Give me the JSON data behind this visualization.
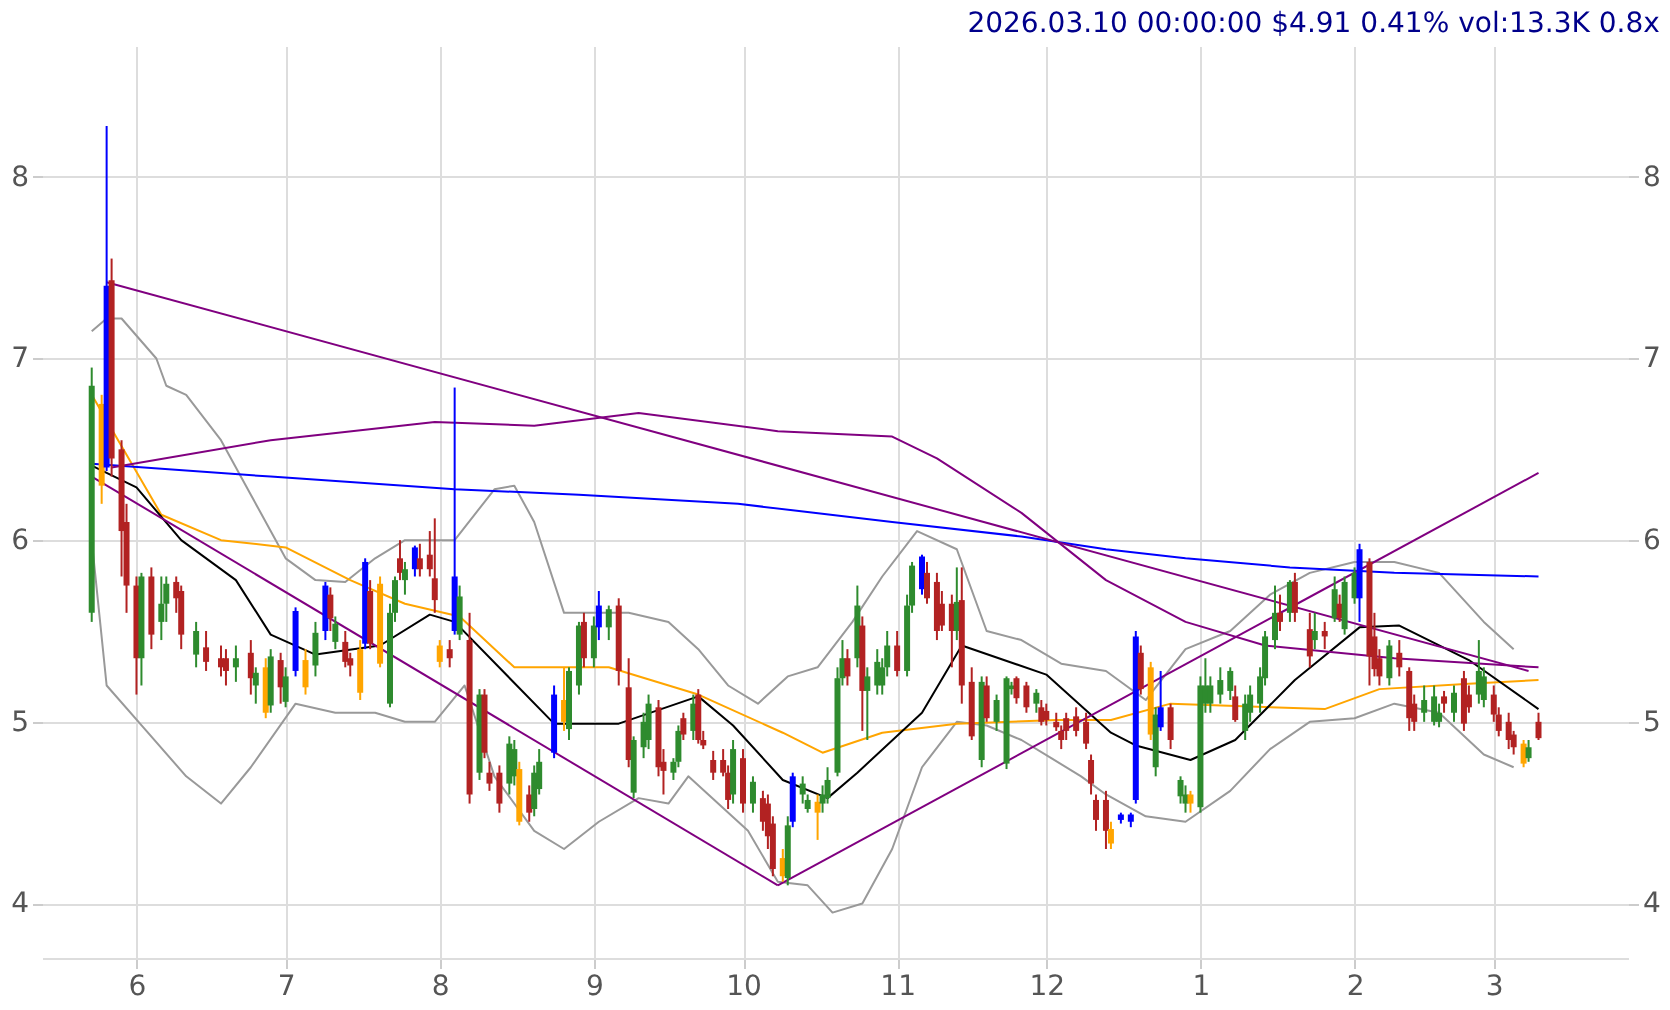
{
  "chart_data": {
    "type": "candlestick",
    "title": "2026.03.10 00:00:00 $4.91 0.41% vol:13.3K 0.8x",
    "x": [
      "2025-05-23",
      "2025-05-25",
      "2025-05-26",
      "2025-05-27",
      "2025-05-29",
      "2025-05-30",
      "2025-06-01",
      "2025-06-02",
      "2025-06-04",
      "2025-06-06",
      "2025-06-07",
      "2025-06-09",
      "2025-06-10",
      "2025-06-13",
      "2025-06-15",
      "2025-06-18",
      "2025-06-19",
      "2025-06-21",
      "2025-06-24",
      "2025-06-25",
      "2025-06-27",
      "2025-06-28",
      "2025-06-30",
      "2025-07-01",
      "2025-07-03",
      "2025-07-05",
      "2025-07-07",
      "2025-07-09",
      "2025-07-10",
      "2025-07-11",
      "2025-07-13",
      "2025-07-14",
      "2025-07-16",
      "2025-07-17",
      "2025-07-18",
      "2025-07-20",
      "2025-07-22",
      "2025-07-23",
      "2025-07-24",
      "2025-07-25",
      "2025-07-27",
      "2025-07-28",
      "2025-07-30",
      "2025-07-31",
      "2025-08-01",
      "2025-08-03",
      "2025-08-04",
      "2025-08-05",
      "2025-08-07",
      "2025-08-09",
      "2025-08-10",
      "2025-08-11",
      "2025-08-13",
      "2025-08-15",
      "2025-08-16",
      "2025-08-17",
      "2025-08-19",
      "2025-08-20",
      "2025-08-21",
      "2025-08-24",
      "2025-08-26",
      "2025-08-27",
      "2025-08-29",
      "2025-08-30",
      "2025-09-01",
      "2025-09-02",
      "2025-09-04",
      "2025-09-06",
      "2025-09-08",
      "2025-09-09",
      "2025-09-11",
      "2025-09-12",
      "2025-09-14",
      "2025-09-15",
      "2025-09-17",
      "2025-09-18",
      "2025-09-19",
      "2025-09-21",
      "2025-09-22",
      "2025-09-23",
      "2025-09-25",
      "2025-09-27",
      "2025-09-28",
      "2025-09-29",
      "2025-10-01",
      "2025-10-03",
      "2025-10-05",
      "2025-10-06",
      "2025-10-07",
      "2025-10-09",
      "2025-10-10",
      "2025-10-11",
      "2025-10-13",
      "2025-10-14",
      "2025-10-16",
      "2025-10-17",
      "2025-10-18",
      "2025-10-20",
      "2025-10-21",
      "2025-10-22",
      "2025-10-24",
      "2025-10-25",
      "2025-10-26",
      "2025-10-28",
      "2025-10-29",
      "2025-10-30",
      "2025-11-01",
      "2025-11-03",
      "2025-11-04",
      "2025-11-06",
      "2025-11-07",
      "2025-11-09",
      "2025-11-10",
      "2025-11-12",
      "2025-11-13",
      "2025-11-14",
      "2025-11-16",
      "2025-11-18",
      "2025-11-19",
      "2025-11-21",
      "2025-11-23",
      "2025-11-24",
      "2025-11-25",
      "2025-11-27",
      "2025-11-29",
      "2025-11-30",
      "2025-12-01",
      "2025-12-03",
      "2025-12-04",
      "2025-12-05",
      "2025-12-07",
      "2025-12-09",
      "2025-12-10",
      "2025-12-11",
      "2025-12-13",
      "2025-12-14",
      "2025-12-16",
      "2025-12-18",
      "2025-12-19",
      "2025-12-20",
      "2025-12-22",
      "2025-12-23",
      "2025-12-24",
      "2025-12-26",
      "2025-12-28",
      "2025-12-29",
      "2025-12-30",
      "2026-01-01",
      "2026-01-02",
      "2026-01-03",
      "2026-01-05",
      "2026-01-07",
      "2026-01-08",
      "2026-01-10",
      "2026-01-11",
      "2026-01-13",
      "2026-01-14",
      "2026-01-16",
      "2026-01-17",
      "2026-01-19",
      "2026-01-20",
      "2026-01-23",
      "2026-01-24",
      "2026-01-26",
      "2026-01-28",
      "2026-01-29",
      "2026-01-30",
      "2026-02-01",
      "2026-02-02",
      "2026-02-04",
      "2026-02-05",
      "2026-02-06",
      "2026-02-08",
      "2026-02-10",
      "2026-02-12",
      "2026-02-13",
      "2026-02-15",
      "2026-02-17",
      "2026-02-18",
      "2026-02-19",
      "2026-02-21",
      "2026-02-23",
      "2026-02-24",
      "2026-02-26",
      "2026-02-27",
      "2026-03-01",
      "2026-03-02",
      "2026-03-04",
      "2026-03-05",
      "2026-03-07",
      "2026-03-08",
      "2026-03-10"
    ],
    "ohlc": [
      [
        5.6,
        6.95,
        5.55,
        6.85
      ],
      [
        6.75,
        6.8,
        6.2,
        6.3
      ],
      [
        6.4,
        8.28,
        6.38,
        7.4
      ],
      [
        7.43,
        7.55,
        6.35,
        6.45
      ],
      [
        6.5,
        6.55,
        5.8,
        6.05
      ],
      [
        6.1,
        6.2,
        5.6,
        5.75
      ],
      [
        5.75,
        5.8,
        5.15,
        5.35
      ],
      [
        5.35,
        5.82,
        5.2,
        5.8
      ],
      [
        5.8,
        5.85,
        5.4,
        5.48
      ],
      [
        5.55,
        5.8,
        5.45,
        5.65
      ],
      [
        5.65,
        5.8,
        5.55,
        5.76
      ],
      [
        5.77,
        5.8,
        5.6,
        5.68
      ],
      [
        5.72,
        5.75,
        5.4,
        5.48
      ],
      [
        5.37,
        5.55,
        5.3,
        5.5
      ],
      [
        5.41,
        5.5,
        5.28,
        5.33
      ],
      [
        5.35,
        5.42,
        5.25,
        5.3
      ],
      [
        5.35,
        5.4,
        5.2,
        5.28
      ],
      [
        5.3,
        5.42,
        5.22,
        5.35
      ],
      [
        5.38,
        5.45,
        5.15,
        5.24
      ],
      [
        5.2,
        5.3,
        5.1,
        5.27
      ],
      [
        5.3,
        5.35,
        5.02,
        5.05
      ],
      [
        5.09,
        5.4,
        5.05,
        5.36
      ],
      [
        5.34,
        5.38,
        5.1,
        5.19
      ],
      [
        5.11,
        5.3,
        5.08,
        5.25
      ],
      [
        5.28,
        5.63,
        5.25,
        5.61
      ],
      [
        5.34,
        5.4,
        5.15,
        5.19
      ],
      [
        5.31,
        5.55,
        5.25,
        5.49
      ],
      [
        5.5,
        5.77,
        5.45,
        5.75
      ],
      [
        5.7,
        5.74,
        5.5,
        5.57
      ],
      [
        5.44,
        5.58,
        5.4,
        5.54
      ],
      [
        5.44,
        5.5,
        5.3,
        5.33
      ],
      [
        5.35,
        5.38,
        5.25,
        5.31
      ],
      [
        5.4,
        5.45,
        5.12,
        5.16
      ],
      [
        5.43,
        5.9,
        5.4,
        5.88
      ],
      [
        5.72,
        5.78,
        5.4,
        5.43
      ],
      [
        5.76,
        5.8,
        5.3,
        5.32
      ],
      [
        5.1,
        5.65,
        5.08,
        5.6
      ],
      [
        5.6,
        5.8,
        5.55,
        5.78
      ],
      [
        5.9,
        6.0,
        5.78,
        5.82
      ],
      [
        5.78,
        5.88,
        5.7,
        5.84
      ],
      [
        5.84,
        5.97,
        5.8,
        5.96
      ],
      [
        5.9,
        5.98,
        5.8,
        5.84
      ],
      [
        5.92,
        6.05,
        5.8,
        5.84
      ],
      [
        5.79,
        6.12,
        5.6,
        5.67
      ],
      [
        5.42,
        5.45,
        5.3,
        5.33
      ],
      [
        5.4,
        5.45,
        5.3,
        5.35
      ],
      [
        5.5,
        6.84,
        5.48,
        5.8
      ],
      [
        5.48,
        5.75,
        5.45,
        5.69
      ],
      [
        5.45,
        5.6,
        4.55,
        4.6
      ],
      [
        4.72,
        5.18,
        4.68,
        5.15
      ],
      [
        5.15,
        5.18,
        4.8,
        4.83
      ],
      [
        4.72,
        4.78,
        4.62,
        4.66
      ],
      [
        4.72,
        4.76,
        4.5,
        4.55
      ],
      [
        4.66,
        4.92,
        4.6,
        4.88
      ],
      [
        4.7,
        4.9,
        4.65,
        4.85
      ],
      [
        4.74,
        4.78,
        4.43,
        4.45
      ],
      [
        4.6,
        4.65,
        4.45,
        4.5
      ],
      [
        4.52,
        4.76,
        4.48,
        4.72
      ],
      [
        4.63,
        4.85,
        4.6,
        4.78
      ],
      [
        4.83,
        5.2,
        4.8,
        5.15
      ],
      [
        5.0,
        5.3,
        4.95,
        5.12
      ],
      [
        4.96,
        5.3,
        4.9,
        5.28
      ],
      [
        5.2,
        5.55,
        5.15,
        5.53
      ],
      [
        5.55,
        5.6,
        5.3,
        5.35
      ],
      [
        5.35,
        5.58,
        5.3,
        5.53
      ],
      [
        5.52,
        5.72,
        5.45,
        5.64
      ],
      [
        5.52,
        5.64,
        5.45,
        5.62
      ],
      [
        5.64,
        5.68,
        5.2,
        5.28
      ],
      [
        5.19,
        5.35,
        4.75,
        4.79
      ],
      [
        4.61,
        4.92,
        4.58,
        4.9
      ],
      [
        4.86,
        5.05,
        4.8,
        5.0
      ],
      [
        4.9,
        5.15,
        4.85,
        5.1
      ],
      [
        5.08,
        5.12,
        4.7,
        4.75
      ],
      [
        4.78,
        4.85,
        4.6,
        4.73
      ],
      [
        4.72,
        4.8,
        4.68,
        4.78
      ],
      [
        4.78,
        4.98,
        4.75,
        4.95
      ],
      [
        5.02,
        5.05,
        4.9,
        4.93
      ],
      [
        4.95,
        5.15,
        4.9,
        5.1
      ],
      [
        5.15,
        5.18,
        4.88,
        4.9
      ],
      [
        4.9,
        4.95,
        4.85,
        4.87
      ],
      [
        4.79,
        4.84,
        4.68,
        4.72
      ],
      [
        4.79,
        4.85,
        4.7,
        4.72
      ],
      [
        4.72,
        4.76,
        4.52,
        4.57
      ],
      [
        4.6,
        4.9,
        4.55,
        4.85
      ],
      [
        4.8,
        4.85,
        4.5,
        4.55
      ],
      [
        4.55,
        4.7,
        4.5,
        4.67
      ],
      [
        4.58,
        4.62,
        4.4,
        4.45
      ],
      [
        4.55,
        4.6,
        4.3,
        4.37
      ],
      [
        4.44,
        4.48,
        4.15,
        4.19
      ],
      [
        4.25,
        4.3,
        4.12,
        4.15
      ],
      [
        4.14,
        4.48,
        4.1,
        4.43
      ],
      [
        4.45,
        4.72,
        4.42,
        4.7
      ],
      [
        4.6,
        4.7,
        4.55,
        4.66
      ],
      [
        4.52,
        4.6,
        4.5,
        4.57
      ],
      [
        4.56,
        4.6,
        4.35,
        4.5
      ],
      [
        4.55,
        4.65,
        4.5,
        4.6
      ],
      [
        4.58,
        4.75,
        4.55,
        4.68
      ],
      [
        4.72,
        5.3,
        4.7,
        5.24
      ],
      [
        5.24,
        5.45,
        5.2,
        5.35
      ],
      [
        5.35,
        5.4,
        5.2,
        5.25
      ],
      [
        5.35,
        5.75,
        5.3,
        5.64
      ],
      [
        5.53,
        5.58,
        4.95,
        5.17
      ],
      [
        5.17,
        5.3,
        4.9,
        5.25
      ],
      [
        5.2,
        5.4,
        5.15,
        5.33
      ],
      [
        5.2,
        5.35,
        5.15,
        5.3
      ],
      [
        5.3,
        5.5,
        5.25,
        5.42
      ],
      [
        5.42,
        5.5,
        5.25,
        5.28
      ],
      [
        5.28,
        5.7,
        5.25,
        5.64
      ],
      [
        5.64,
        5.88,
        5.6,
        5.86
      ],
      [
        5.73,
        5.92,
        5.7,
        5.91
      ],
      [
        5.82,
        5.88,
        5.65,
        5.68
      ],
      [
        5.77,
        5.82,
        5.45,
        5.5
      ],
      [
        5.65,
        5.72,
        5.5,
        5.53
      ],
      [
        5.65,
        5.7,
        5.3,
        5.5
      ],
      [
        5.5,
        5.85,
        5.45,
        5.66
      ],
      [
        5.67,
        5.85,
        5.1,
        5.2
      ],
      [
        5.22,
        5.3,
        4.9,
        4.92
      ],
      [
        4.79,
        5.25,
        4.75,
        5.22
      ],
      [
        5.2,
        5.25,
        5.0,
        5.02
      ],
      [
        5.0,
        5.15,
        4.95,
        5.12
      ],
      [
        4.77,
        5.25,
        4.74,
        5.24
      ],
      [
        5.18,
        5.22,
        5.15,
        5.2
      ],
      [
        5.24,
        5.25,
        5.1,
        5.13
      ],
      [
        5.2,
        5.22,
        5.05,
        5.08
      ],
      [
        5.1,
        5.18,
        5.05,
        5.16
      ],
      [
        5.08,
        5.12,
        4.98,
        5.0
      ],
      [
        5.06,
        5.1,
        4.98,
        5.01
      ],
      [
        5.0,
        5.05,
        4.95,
        4.97
      ],
      [
        4.95,
        4.98,
        4.85,
        4.9
      ],
      [
        5.02,
        5.05,
        4.9,
        4.95
      ],
      [
        5.03,
        5.08,
        4.92,
        4.95
      ],
      [
        5.0,
        5.05,
        4.85,
        4.88
      ],
      [
        4.79,
        4.82,
        4.6,
        4.66
      ],
      [
        4.57,
        4.6,
        4.4,
        4.46
      ],
      [
        4.57,
        4.62,
        4.3,
        4.4
      ],
      [
        4.41,
        4.45,
        4.3,
        4.33
      ],
      [
        4.46,
        4.5,
        4.44,
        4.49
      ],
      [
        4.45,
        4.5,
        4.42,
        4.49
      ],
      [
        4.57,
        5.5,
        4.55,
        5.47
      ],
      [
        5.38,
        5.42,
        5.15,
        5.18
      ],
      [
        5.3,
        5.33,
        4.9,
        4.93
      ],
      [
        4.75,
        5.08,
        4.7,
        5.04
      ],
      [
        4.97,
        5.28,
        4.95,
        5.08
      ],
      [
        5.08,
        5.1,
        4.85,
        4.9
      ],
      [
        4.59,
        4.7,
        4.55,
        4.68
      ],
      [
        4.55,
        4.65,
        4.5,
        4.6
      ],
      [
        4.6,
        4.62,
        4.5,
        4.55
      ],
      [
        4.53,
        5.25,
        4.5,
        5.2
      ],
      [
        5.1,
        5.35,
        5.05,
        5.2
      ],
      [
        5.1,
        5.25,
        5.05,
        5.2
      ],
      [
        5.15,
        5.3,
        5.1,
        5.23
      ],
      [
        5.17,
        5.3,
        5.12,
        5.28
      ],
      [
        5.14,
        5.2,
        5.0,
        5.01
      ],
      [
        4.95,
        5.15,
        4.9,
        5.1
      ],
      [
        5.05,
        5.2,
        5.0,
        5.15
      ],
      [
        5.1,
        5.3,
        5.05,
        5.25
      ],
      [
        5.24,
        5.5,
        5.2,
        5.47
      ],
      [
        5.45,
        5.75,
        5.4,
        5.6
      ],
      [
        5.6,
        5.7,
        5.5,
        5.55
      ],
      [
        5.6,
        5.78,
        5.55,
        5.77
      ],
      [
        5.77,
        5.82,
        5.55,
        5.6
      ],
      [
        5.51,
        5.6,
        5.3,
        5.36
      ],
      [
        5.45,
        5.6,
        5.4,
        5.5
      ],
      [
        5.5,
        5.55,
        5.4,
        5.47
      ],
      [
        5.57,
        5.8,
        5.55,
        5.73
      ],
      [
        5.65,
        5.7,
        5.55,
        5.57
      ],
      [
        5.51,
        5.8,
        5.48,
        5.77
      ],
      [
        5.68,
        5.85,
        5.65,
        5.82
      ],
      [
        5.68,
        5.98,
        5.55,
        5.95
      ],
      [
        5.88,
        5.9,
        5.2,
        5.36
      ],
      [
        5.47,
        5.6,
        5.25,
        5.29
      ],
      [
        5.35,
        5.4,
        5.2,
        5.25
      ],
      [
        5.24,
        5.45,
        5.2,
        5.42
      ],
      [
        5.38,
        5.45,
        5.25,
        5.3
      ],
      [
        5.28,
        5.3,
        4.95,
        5.02
      ],
      [
        5.1,
        5.15,
        4.95,
        5.0
      ],
      [
        5.05,
        5.2,
        5.0,
        5.12
      ],
      [
        5.0,
        5.2,
        4.98,
        5.14
      ],
      [
        5.0,
        5.1,
        4.97,
        5.05
      ],
      [
        5.14,
        5.17,
        5.05,
        5.1
      ],
      [
        5.05,
        5.2,
        5.0,
        5.16
      ],
      [
        5.24,
        5.28,
        4.95,
        4.99
      ],
      [
        5.15,
        5.2,
        5.05,
        5.08
      ],
      [
        5.15,
        5.45,
        5.1,
        5.28
      ],
      [
        5.12,
        5.3,
        5.08,
        5.25
      ],
      [
        5.15,
        5.2,
        5.0,
        5.04
      ],
      [
        5.04,
        5.08,
        4.92,
        4.95
      ],
      [
        5.0,
        5.05,
        4.85,
        4.9
      ],
      [
        4.93,
        4.95,
        4.82,
        4.86
      ],
      [
        4.88,
        4.9,
        4.75,
        4.77
      ],
      [
        4.8,
        4.9,
        4.78,
        4.86
      ],
      [
        5.0,
        5.05,
        4.9,
        4.91
      ]
    ],
    "colors": [
      "#2e8b2e",
      "#ffa500",
      "#0000ff",
      "#b22222",
      "#b22222",
      "#b22222",
      "#b22222",
      "#2e8b2e",
      "#b22222",
      "#2e8b2e",
      "#2e8b2e",
      "#b22222",
      "#b22222",
      "#2e8b2e",
      "#b22222",
      "#b22222",
      "#b22222",
      "#2e8b2e",
      "#b22222",
      "#2e8b2e",
      "#ffa500",
      "#2e8b2e",
      "#b22222",
      "#2e8b2e",
      "#0000ff",
      "#ffa500",
      "#2e8b2e",
      "#0000ff",
      "#b22222",
      "#2e8b2e",
      "#b22222",
      "#b22222",
      "#ffa500",
      "#0000ff",
      "#b22222",
      "#ffa500",
      "#2e8b2e",
      "#2e8b2e",
      "#b22222",
      "#2e8b2e",
      "#0000ff",
      "#b22222",
      "#b22222",
      "#b22222",
      "#ffa500",
      "#b22222",
      "#0000ff",
      "#2e8b2e",
      "#b22222",
      "#2e8b2e",
      "#b22222",
      "#b22222",
      "#b22222",
      "#2e8b2e",
      "#2e8b2e",
      "#ffa500",
      "#b22222",
      "#2e8b2e",
      "#2e8b2e",
      "#0000ff",
      "#ffa500",
      "#2e8b2e",
      "#2e8b2e",
      "#b22222",
      "#2e8b2e",
      "#0000ff",
      "#2e8b2e",
      "#b22222",
      "#b22222",
      "#2e8b2e",
      "#2e8b2e",
      "#2e8b2e",
      "#b22222",
      "#b22222",
      "#2e8b2e",
      "#2e8b2e",
      "#b22222",
      "#2e8b2e",
      "#b22222",
      "#b22222",
      "#b22222",
      "#b22222",
      "#b22222",
      "#2e8b2e",
      "#b22222",
      "#2e8b2e",
      "#b22222",
      "#b22222",
      "#b22222",
      "#ffa500",
      "#2e8b2e",
      "#0000ff",
      "#2e8b2e",
      "#2e8b2e",
      "#ffa500",
      "#2e8b2e",
      "#2e8b2e",
      "#2e8b2e",
      "#2e8b2e",
      "#b22222",
      "#2e8b2e",
      "#b22222",
      "#2e8b2e",
      "#2e8b2e",
      "#2e8b2e",
      "#2e8b2e",
      "#b22222",
      "#2e8b2e",
      "#2e8b2e",
      "#0000ff",
      "#b22222",
      "#b22222",
      "#b22222",
      "#b22222",
      "#2e8b2e",
      "#b22222",
      "#b22222",
      "#2e8b2e",
      "#b22222",
      "#2e8b2e",
      "#2e8b2e",
      "#2e8b2e",
      "#b22222",
      "#b22222",
      "#2e8b2e",
      "#b22222",
      "#b22222",
      "#b22222",
      "#b22222",
      "#b22222",
      "#b22222",
      "#b22222",
      "#b22222",
      "#b22222",
      "#b22222",
      "#ffa500",
      "#0000ff",
      "#0000ff",
      "#0000ff",
      "#b22222",
      "#ffa500",
      "#2e8b2e",
      "#0000ff",
      "#b22222",
      "#2e8b2e",
      "#2e8b2e",
      "#ffa500",
      "#2e8b2e",
      "#2e8b2e",
      "#2e8b2e",
      "#2e8b2e",
      "#2e8b2e",
      "#b22222",
      "#2e8b2e",
      "#2e8b2e",
      "#2e8b2e",
      "#2e8b2e",
      "#2e8b2e",
      "#b22222",
      "#2e8b2e",
      "#b22222",
      "#b22222",
      "#2e8b2e",
      "#b22222",
      "#2e8b2e",
      "#b22222",
      "#2e8b2e",
      "#2e8b2e",
      "#0000ff",
      "#b22222",
      "#b22222",
      "#b22222",
      "#2e8b2e",
      "#b22222",
      "#b22222",
      "#b22222",
      "#2e8b2e",
      "#2e8b2e",
      "#2e8b2e",
      "#b22222",
      "#2e8b2e",
      "#b22222",
      "#b22222",
      "#2e8b2e",
      "#2e8b2e",
      "#b22222",
      "#b22222",
      "#b22222",
      "#b22222",
      "#ffa500",
      "#2e8b2e",
      "#b22222"
    ],
    "series": [
      {
        "type": "line",
        "color": "#999999",
        "x": [
          "2025-05-23",
          "2025-05-26",
          "2025-05-29",
          "2025-06-05",
          "2025-06-07",
          "2025-06-11",
          "2025-06-18",
          "2025-06-24",
          "2025-07-01",
          "2025-07-07",
          "2025-07-13",
          "2025-07-19",
          "2025-07-25",
          "2025-07-31",
          "2025-08-04",
          "2025-08-12",
          "2025-08-16",
          "2025-08-20",
          "2025-08-26",
          "2025-09-02",
          "2025-09-08",
          "2025-09-16",
          "2025-09-22",
          "2025-09-28",
          "2025-10-04",
          "2025-10-10",
          "2025-10-16",
          "2025-10-23",
          "2025-10-29",
          "2025-11-05",
          "2025-11-13",
          "2025-11-19",
          "2025-11-26",
          "2025-12-04",
          "2025-12-13",
          "2025-12-21",
          "2025-12-29",
          "2026-01-07",
          "2026-01-15",
          "2026-01-23",
          "2026-02-01",
          "2026-02-09",
          "2026-02-18",
          "2026-02-27",
          "2026-03-05"
        ],
        "values": [
          7.15,
          7.22,
          7.22,
          7.0,
          6.85,
          6.8,
          6.55,
          6.25,
          5.9,
          5.78,
          5.77,
          5.9,
          6.0,
          6.0,
          6.0,
          6.28,
          6.3,
          6.1,
          5.6,
          5.6,
          5.6,
          5.55,
          5.4,
          5.2,
          5.1,
          5.25,
          5.3,
          5.55,
          5.8,
          6.05,
          5.95,
          5.5,
          5.45,
          5.32,
          5.28,
          5.12,
          5.4,
          5.5,
          5.7,
          5.82,
          5.88,
          5.88,
          5.82,
          5.55,
          5.4
        ]
      },
      {
        "type": "line",
        "color": "#999999",
        "x": [
          "2025-05-23",
          "2025-05-26",
          "2025-06-03",
          "2025-06-11",
          "2025-06-18",
          "2025-06-24",
          "2025-07-03",
          "2025-07-11",
          "2025-07-19",
          "2025-07-25",
          "2025-07-31",
          "2025-08-06",
          "2025-08-12",
          "2025-08-20",
          "2025-08-26",
          "2025-09-02",
          "2025-09-10",
          "2025-09-16",
          "2025-09-20",
          "2025-09-26",
          "2025-10-02",
          "2025-10-08",
          "2025-10-14",
          "2025-10-19",
          "2025-10-25",
          "2025-10-31",
          "2025-11-06",
          "2025-11-13",
          "2025-11-19",
          "2025-11-26",
          "2025-12-02",
          "2025-12-08",
          "2025-12-13",
          "2025-12-21",
          "2025-12-29",
          "2026-01-07",
          "2026-01-15",
          "2026-01-23",
          "2026-02-01",
          "2026-02-09",
          "2026-02-18",
          "2026-02-27",
          "2026-03-05"
        ],
        "values": [
          6.0,
          5.2,
          4.95,
          4.7,
          4.55,
          4.75,
          5.1,
          5.05,
          5.05,
          5.0,
          5.0,
          5.2,
          4.7,
          4.4,
          4.3,
          4.45,
          4.58,
          4.55,
          4.7,
          4.55,
          4.4,
          4.12,
          4.1,
          3.95,
          4.0,
          4.3,
          4.75,
          5.0,
          4.98,
          4.9,
          4.8,
          4.7,
          4.6,
          4.48,
          4.45,
          4.62,
          4.85,
          5.0,
          5.02,
          5.1,
          5.05,
          4.82,
          4.75
        ]
      },
      {
        "type": "line",
        "color": "#ffa500",
        "x": [
          "2025-05-23",
          "2025-06-06",
          "2025-06-18",
          "2025-07-01",
          "2025-07-14",
          "2025-07-25",
          "2025-08-05",
          "2025-08-16",
          "2025-09-04",
          "2025-09-22",
          "2025-10-09",
          "2025-10-17",
          "2025-10-29",
          "2025-11-13",
          "2025-12-03",
          "2025-12-14",
          "2025-12-26",
          "2026-01-26",
          "2026-02-06",
          "2026-02-24",
          "2026-03-10"
        ],
        "values": [
          6.8,
          6.14,
          6.0,
          5.96,
          5.78,
          5.65,
          5.58,
          5.3,
          5.3,
          5.15,
          4.94,
          4.83,
          4.94,
          4.99,
          5.01,
          5.01,
          5.1,
          5.07,
          5.18,
          5.21,
          5.23
        ]
      },
      {
        "type": "line",
        "color": "#000000",
        "x": [
          "2025-05-23",
          "2025-06-01",
          "2025-06-10",
          "2025-06-21",
          "2025-06-28",
          "2025-07-07",
          "2025-07-20",
          "2025-07-30",
          "2025-08-04",
          "2025-08-24",
          "2025-09-06",
          "2025-09-22",
          "2025-09-29",
          "2025-10-09",
          "2025-10-18",
          "2025-10-24",
          "2025-11-06",
          "2025-11-14",
          "2025-12-01",
          "2025-12-14",
          "2025-12-19",
          "2025-12-30",
          "2026-01-08",
          "2026-01-20",
          "2026-02-02",
          "2026-02-10",
          "2026-02-24",
          "2026-03-10"
        ],
        "values": [
          6.41,
          6.29,
          6.0,
          5.78,
          5.48,
          5.37,
          5.42,
          5.59,
          5.55,
          4.99,
          4.99,
          5.14,
          4.98,
          4.68,
          4.58,
          4.72,
          5.05,
          5.42,
          5.26,
          4.94,
          4.87,
          4.79,
          4.9,
          5.23,
          5.52,
          5.53,
          5.34,
          5.07
        ]
      },
      {
        "type": "line",
        "color": "#0000ff",
        "x": [
          "2025-05-23",
          "2025-06-28",
          "2025-08-04",
          "2025-08-29",
          "2025-09-30",
          "2025-10-31",
          "2025-11-26",
          "2025-12-13",
          "2025-12-29",
          "2026-01-19",
          "2026-02-09",
          "2026-03-10"
        ],
        "values": [
          6.42,
          6.35,
          6.28,
          6.25,
          6.2,
          6.1,
          6.02,
          5.95,
          5.9,
          5.85,
          5.82,
          5.8
        ]
      },
      {
        "type": "line",
        "color": "#800080",
        "x": [
          "2025-05-27",
          "2025-06-28",
          "2025-07-31",
          "2025-08-20",
          "2025-09-10",
          "2025-10-08",
          "2025-10-31",
          "2025-11-09",
          "2025-11-26",
          "2025-12-13",
          "2025-12-29",
          "2026-01-14",
          "2026-02-09",
          "2026-03-10"
        ],
        "values": [
          6.4,
          6.55,
          6.65,
          6.63,
          6.7,
          6.6,
          6.57,
          6.45,
          6.15,
          5.78,
          5.55,
          5.42,
          5.35,
          5.3
        ]
      },
      {
        "type": "line",
        "color": "#800080",
        "x": [
          "2025-05-26",
          "2026-03-08"
        ],
        "values": [
          7.42,
          5.28
        ]
      },
      {
        "type": "line",
        "color": "#800080",
        "x": [
          "2025-05-23",
          "2025-10-08"
        ],
        "values": [
          6.35,
          4.1
        ]
      },
      {
        "type": "line",
        "color": "#800080",
        "x": [
          "2025-10-08",
          "2026-03-10"
        ],
        "values": [
          4.1,
          6.37
        ]
      }
    ],
    "xlim": [
      "2025-05-13",
      "2026-03-28"
    ],
    "xticks": [
      {
        "value": "2025-06-01",
        "label": "6"
      },
      {
        "value": "2025-07-01",
        "label": "7"
      },
      {
        "value": "2025-08-01",
        "label": "8"
      },
      {
        "value": "2025-09-01",
        "label": "9"
      },
      {
        "value": "2025-10-01",
        "label": "10"
      },
      {
        "value": "2025-11-01",
        "label": "11"
      },
      {
        "value": "2025-12-01",
        "label": "12"
      },
      {
        "value": "2026-01-01",
        "label": "1"
      },
      {
        "value": "2026-02-01",
        "label": "2"
      },
      {
        "value": "2026-03-01",
        "label": "3"
      }
    ],
    "ylim": [
      3.7,
      8.72
    ],
    "yticks": [
      4,
      5,
      6,
      7,
      8
    ],
    "y2lim": [
      3.7,
      8.72
    ],
    "y2ticks": [
      4,
      5,
      6,
      7,
      8
    ],
    "grid": true
  }
}
